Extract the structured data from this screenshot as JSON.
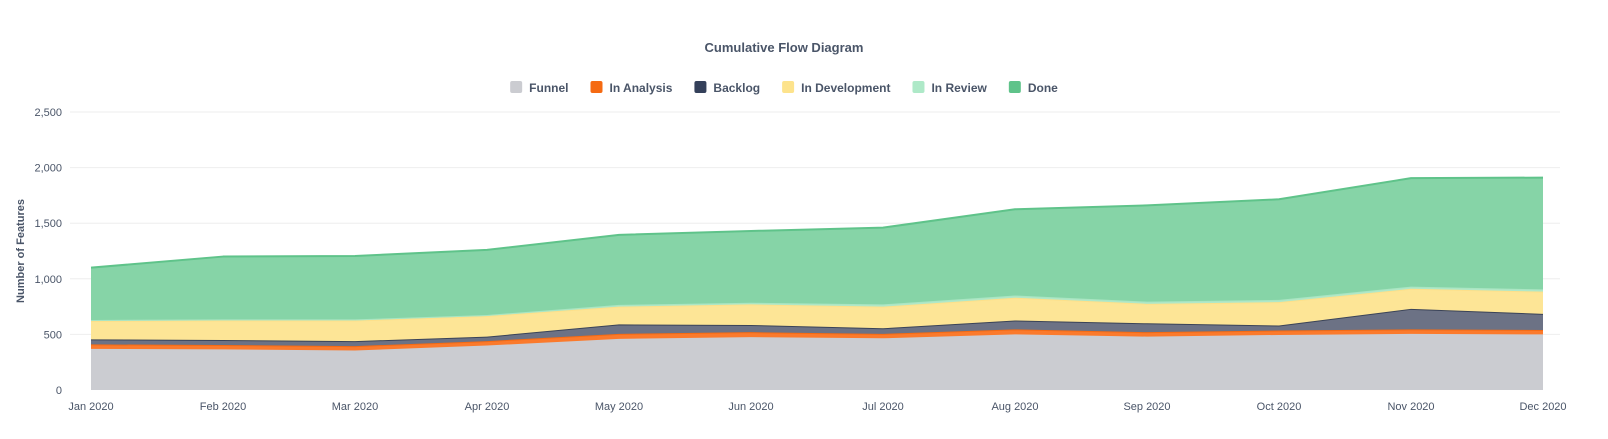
{
  "chart_data": {
    "type": "area",
    "stacked": true,
    "title": "Cumulative Flow Diagram",
    "xlabel": "",
    "ylabel": "Number of Features",
    "ylim": [
      0,
      2500
    ],
    "yticks": [
      0,
      500,
      1000,
      1500,
      2000,
      2500
    ],
    "ytick_labels": [
      "0",
      "500",
      "1,000",
      "1,500",
      "2,000",
      "2,500"
    ],
    "grid": true,
    "legend_position": "top-center",
    "categories": [
      "Jan 2020",
      "Feb 2020",
      "Mar 2020",
      "Apr 2020",
      "May 2020",
      "Jun 2020",
      "Jul 2020",
      "Aug 2020",
      "Sep 2020",
      "Oct 2020",
      "Nov 2020",
      "Dec 2020"
    ],
    "series": [
      {
        "name": "Funnel",
        "color": "#cbccd1",
        "values": [
          370,
          365,
          355,
          400,
          460,
          475,
          465,
          500,
          480,
          495,
          505,
          500
        ]
      },
      {
        "name": "In Analysis",
        "color": "#fb7a2c",
        "values": [
          40,
          40,
          40,
          40,
          45,
          45,
          40,
          45,
          40,
          40,
          40,
          40
        ]
      },
      {
        "name": "Backlog",
        "color": "#6c7285",
        "values": [
          45,
          45,
          45,
          40,
          85,
          65,
          50,
          80,
          80,
          45,
          185,
          145
        ]
      },
      {
        "name": "In Development",
        "color": "#fde596",
        "values": [
          165,
          175,
          185,
          185,
          160,
          185,
          195,
          205,
          175,
          210,
          180,
          200
        ]
      },
      {
        "name": "In Review",
        "color": "#b1e8c8",
        "values": [
          10,
          10,
          10,
          10,
          15,
          15,
          20,
          20,
          20,
          20,
          20,
          20
        ]
      },
      {
        "name": "Done",
        "color": "#86d4a7",
        "values": [
          470,
          565,
          570,
          585,
          630,
          645,
          690,
          775,
          865,
          905,
          975,
          1005
        ]
      }
    ]
  },
  "line_colors": {
    "Funnel": "#cbccd1",
    "In Analysis": "#f56a12",
    "Backlog": "#3a4358",
    "In Development": "#fde08a",
    "In Review": "#a9e5c2",
    "Done": "#5fc38a"
  },
  "legend_swatch_colors": {
    "Funnel": "#cbccd1",
    "In Analysis": "#f56a12",
    "Backlog": "#34405a",
    "In Development": "#fde38c",
    "In Review": "#aee9c8",
    "Done": "#5fc38a"
  }
}
